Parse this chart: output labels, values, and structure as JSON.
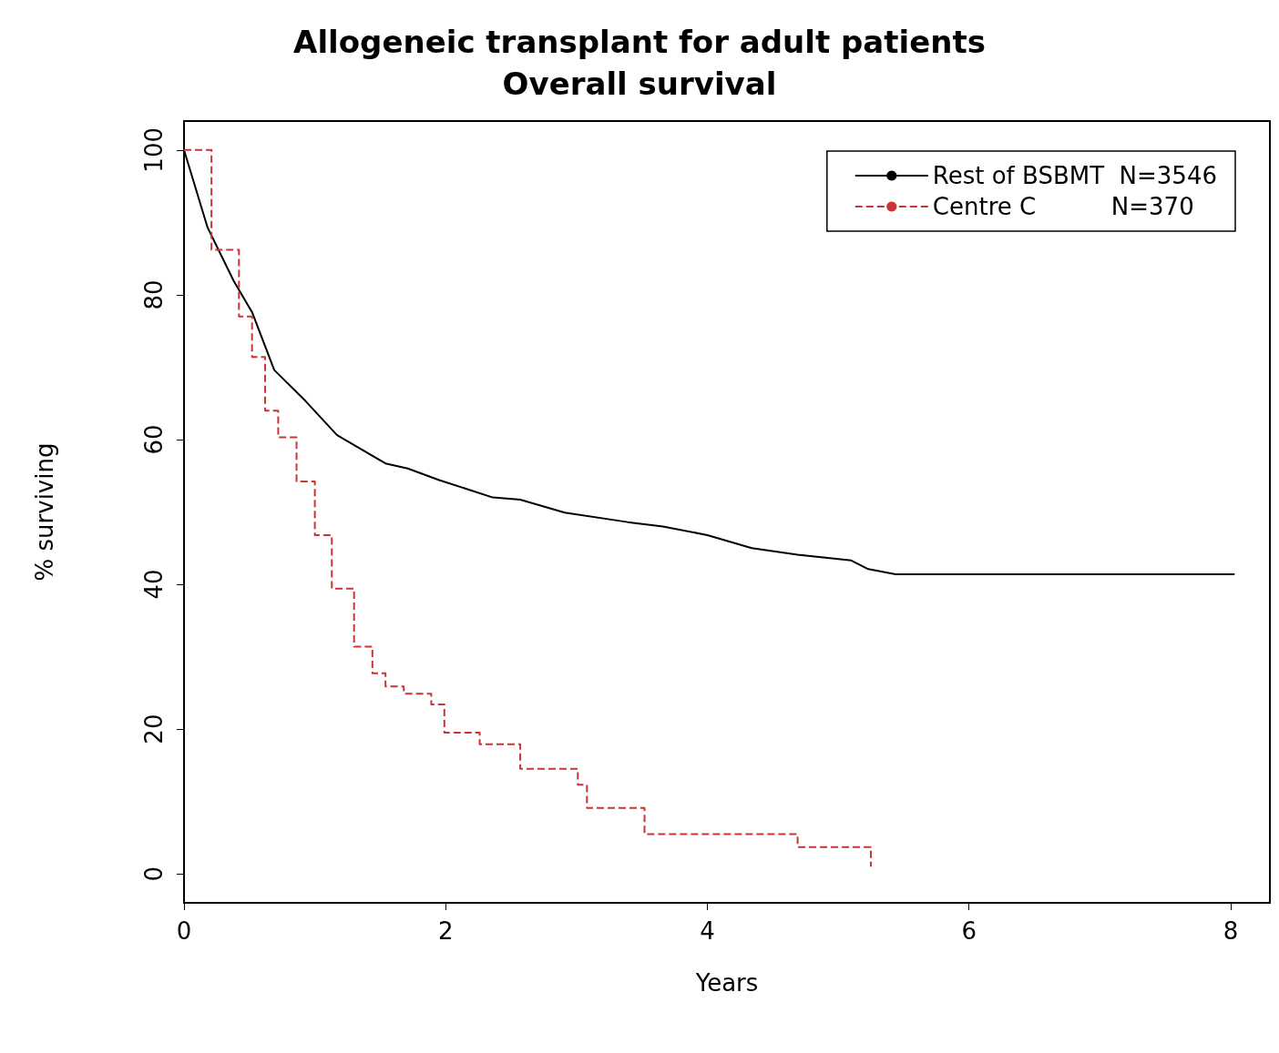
{
  "chart_data": {
    "type": "line",
    "title": "Allogeneic transplant for adult patients\nOverall survival",
    "xlabel": "Years",
    "ylabel": "% surviving",
    "xlim": [
      0,
      8.3
    ],
    "xticks": [
      0,
      2,
      4,
      6,
      8
    ],
    "ylim": [
      -4,
      104
    ],
    "yticks": [
      0,
      20,
      40,
      60,
      80,
      100
    ],
    "grid": false,
    "legend": "top right",
    "marker": "none",
    "series": [
      {
        "name": "Rest of BSBMT  N=3546",
        "color": "#000000",
        "line_style": "solid",
        "x": [
          0,
          0.18,
          0.38,
          0.52,
          0.69,
          0.93,
          1.17,
          1.54,
          1.71,
          1.95,
          2.36,
          2.57,
          2.91,
          3.39,
          3.66,
          4.0,
          4.34,
          4.69,
          5.1,
          5.23,
          5.44,
          8.03
        ],
        "values": [
          100,
          89.3,
          81.9,
          77.6,
          69.6,
          65.3,
          60.6,
          56.7,
          56.0,
          54.4,
          52.0,
          51.7,
          49.9,
          48.6,
          48.0,
          46.8,
          45.0,
          44.1,
          43.3,
          42.1,
          41.4,
          41.4
        ]
      },
      {
        "name": "Centre C          N=370",
        "color": "#cc3333",
        "type": "step",
        "line_style": "dashed",
        "x": [
          0,
          0.21,
          0.42,
          0.52,
          0.62,
          0.72,
          0.86,
          1.0,
          1.13,
          1.3,
          1.44,
          1.54,
          1.68,
          1.89,
          1.99,
          2.26,
          2.57,
          3.01,
          3.08,
          3.52,
          4.69,
          5.25,
          5.25
        ],
        "values": [
          100,
          86.2,
          77.0,
          71.4,
          64.0,
          60.3,
          54.2,
          46.8,
          39.4,
          31.4,
          27.7,
          25.9,
          24.9,
          23.4,
          19.5,
          17.9,
          14.5,
          12.3,
          9.1,
          5.5,
          3.7,
          3.7,
          1.0
        ]
      }
    ]
  }
}
